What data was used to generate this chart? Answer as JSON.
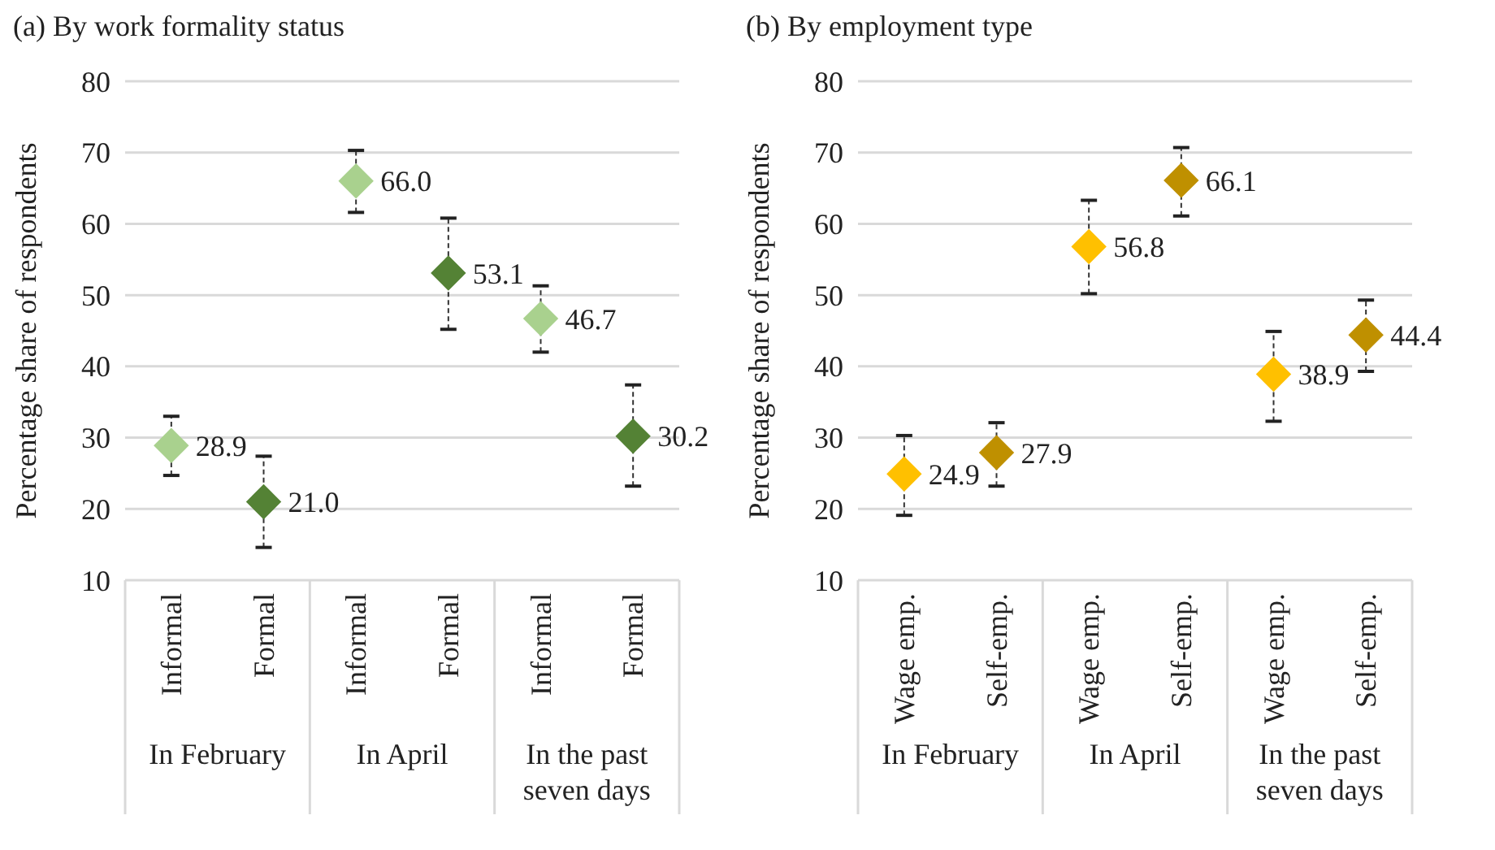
{
  "chart_data": [
    {
      "type": "scatter",
      "title": "(a) By work formality status",
      "ylabel": "Percentage share of respondents",
      "categories": [
        "Informal",
        "Formal",
        "Informal",
        "Formal",
        "Informal",
        "Formal"
      ],
      "annotations": [
        "In February",
        "In April",
        "In the past seven days"
      ],
      "series": [
        {
          "colors": [
            "#a9d18e",
            "#548235",
            "#a9d18e",
            "#548235",
            "#a9d18e",
            "#548235"
          ],
          "values": [
            28.9,
            21.0,
            66.0,
            53.1,
            46.7,
            30.2
          ],
          "value_labels": [
            "28.9",
            "21.0",
            "66.0",
            "53.1",
            "46.7",
            "30.2"
          ],
          "errors": [
            [
              24.7,
              33.0
            ],
            [
              14.6,
              27.4
            ],
            [
              61.6,
              70.3
            ],
            [
              45.2,
              60.8
            ],
            [
              42.0,
              51.3
            ],
            [
              23.2,
              37.4
            ]
          ]
        }
      ],
      "ylim": [
        10,
        80
      ],
      "yticks": [
        10,
        20,
        30,
        40,
        50,
        60,
        70,
        80
      ],
      "grid": "y",
      "marker": "diamond"
    },
    {
      "type": "scatter",
      "title": "(b) By employment type",
      "ylabel": "Percentage share of respondents",
      "categories": [
        "Wage emp.",
        "Self-emp.",
        "Wage emp.",
        "Self-emp.",
        "Wage emp.",
        "Self-emp."
      ],
      "annotations": [
        "In February",
        "In April",
        "In the past seven days"
      ],
      "series": [
        {
          "colors": [
            "#ffc000",
            "#bf9000",
            "#ffc000",
            "#bf9000",
            "#ffc000",
            "#bf9000"
          ],
          "values": [
            24.9,
            27.9,
            56.8,
            66.1,
            38.9,
            44.4
          ],
          "value_labels": [
            "24.9",
            "27.9",
            "56.8",
            "66.1",
            "38.9",
            "44.4"
          ],
          "errors": [
            [
              19.1,
              30.3
            ],
            [
              23.2,
              32.1
            ],
            [
              50.2,
              63.3
            ],
            [
              61.1,
              70.7
            ],
            [
              32.3,
              44.9
            ],
            [
              39.3,
              49.3
            ]
          ]
        }
      ],
      "ylim": [
        10,
        80
      ],
      "yticks": [
        10,
        20,
        30,
        40,
        50,
        60,
        70,
        80
      ],
      "grid": "y",
      "marker": "diamond"
    }
  ]
}
